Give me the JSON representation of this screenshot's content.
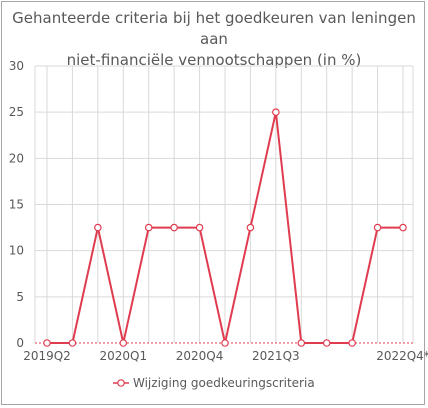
{
  "chart_data": {
    "type": "line",
    "title_line1": "Gehanteerde criteria bij het goedkeuren van leningen aan",
    "title_line2": "niet-financiële vennootschappen (in %)",
    "ylim": [
      0,
      30
    ],
    "yticks": [
      0,
      5,
      10,
      15,
      20,
      25,
      30
    ],
    "x": [
      "2019Q2",
      "2019Q3",
      "2019Q4",
      "2020Q1",
      "2020Q2",
      "2020Q3",
      "2020Q4",
      "2021Q1",
      "2021Q2",
      "2021Q3",
      "2021Q4",
      "2022Q1",
      "2022Q2",
      "2022Q3",
      "2022Q4*"
    ],
    "x_tick_labels": [
      {
        "index": 0,
        "label": "2019Q2"
      },
      {
        "index": 3,
        "label": "2020Q1"
      },
      {
        "index": 6,
        "label": "2020Q4"
      },
      {
        "index": 9,
        "label": "2021Q3"
      },
      {
        "index": 14,
        "label": "2022Q4*"
      }
    ],
    "series": [
      {
        "name": "Wijziging goedkeuringscriteria",
        "values": [
          0,
          0,
          12.5,
          0,
          12.5,
          12.5,
          12.5,
          0,
          12.5,
          25,
          0,
          0,
          0,
          12.5,
          12.5
        ],
        "color": "#e03c50"
      }
    ],
    "grid": true,
    "legend_position": "bottom"
  }
}
